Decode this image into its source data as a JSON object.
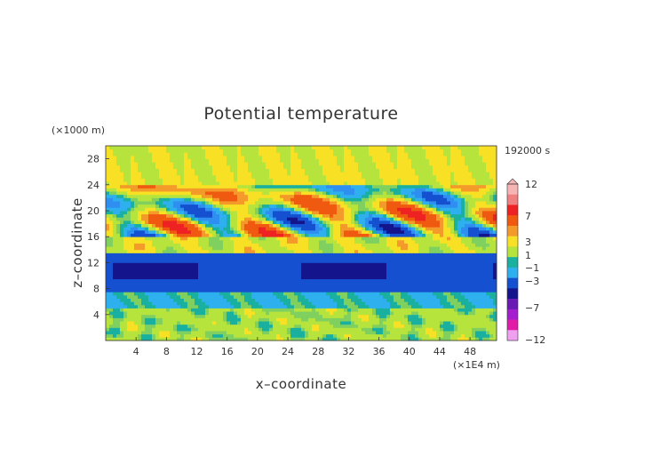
{
  "chart_data": {
    "type": "heatmap",
    "title": "Potential temperature",
    "xlabel": "x–coordinate",
    "ylabel": "z–coordinate",
    "x_unit": "(×1E4 m)",
    "y_unit": "(×1000 m)",
    "time_label": "192000 s",
    "xlim": [
      0,
      51.5
    ],
    "ylim": [
      0,
      30
    ],
    "x_ticks": [
      "4",
      "8",
      "12",
      "16",
      "20",
      "24",
      "28",
      "32",
      "36",
      "40",
      "44",
      "48"
    ],
    "y_ticks": [
      "4",
      "8",
      "12",
      "16",
      "20",
      "24",
      "28"
    ],
    "colorbar": {
      "labels": [
        "12",
        "7",
        "3",
        "1",
        "−1",
        "−3",
        "−7",
        "−12"
      ],
      "colors": [
        "#f7b4b4",
        "#f08080",
        "#ee2222",
        "#f05a10",
        "#f49a2a",
        "#f8e024",
        "#b6e43c",
        "#1ab0a0",
        "#2fb0ee",
        "#1450d0",
        "#14148c",
        "#6a1ab4",
        "#a41ed0",
        "#e21ca8",
        "#f0a0f0"
      ]
    },
    "z_layers": [
      {
        "z_range": [
          0,
          5
        ],
        "value": "−1 to 1"
      },
      {
        "z_range": [
          5,
          7.5
        ],
        "value": "−2 to −1"
      },
      {
        "z_range": [
          7.5,
          13.5
        ],
        "value": "−7 to −3"
      },
      {
        "z_range": [
          13.5,
          16
        ],
        "value": "0 to 3"
      },
      {
        "z_range": [
          16,
          24
        ],
        "value": "−7 to 12"
      },
      {
        "z_range": [
          24,
          30
        ],
        "value": "0 to 3"
      }
    ]
  }
}
